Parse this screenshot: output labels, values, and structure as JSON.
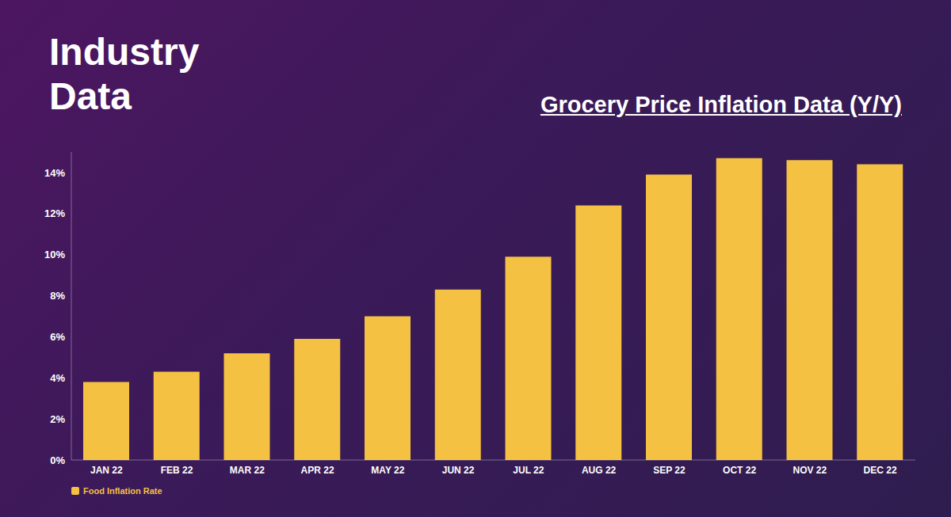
{
  "chart_data": {
    "type": "bar",
    "title": "Industry Data",
    "subtitle": "Grocery Price Inflation Data (Y/Y)",
    "categories": [
      "JAN 22",
      "FEB 22",
      "MAR 22",
      "APR 22",
      "MAY 22",
      "JUN 22",
      "JUL 22",
      "AUG 22",
      "SEP 22",
      "OCT 22",
      "NOV 22",
      "DEC 22"
    ],
    "series": [
      {
        "name": "Food Inflation Rate",
        "color": "#f5c142",
        "values": [
          3.8,
          4.3,
          5.2,
          5.9,
          7.0,
          8.3,
          9.9,
          12.4,
          13.9,
          14.7,
          14.6,
          14.4
        ]
      }
    ],
    "ylim": [
      0,
      15
    ],
    "yticks": [
      {
        "value": 0,
        "label": "0%"
      },
      {
        "value": 2,
        "label": "2%"
      },
      {
        "value": 4,
        "label": "4%"
      },
      {
        "value": 6,
        "label": "6%"
      },
      {
        "value": 8,
        "label": "8%"
      },
      {
        "value": 10,
        "label": "10%"
      },
      {
        "value": 12,
        "label": "12%"
      },
      {
        "value": 14,
        "label": "14%"
      }
    ],
    "grid": false,
    "legend": "lower-left"
  }
}
